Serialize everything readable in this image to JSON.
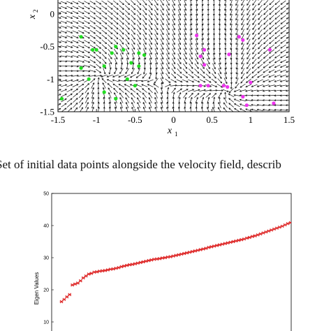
{
  "caption": "Set of initial data points alongside the velocity field, describ",
  "chart_data": [
    {
      "type": "scatter",
      "title": "",
      "xlabel": "x",
      "xlabel_sub": "1",
      "ylabel": "x",
      "ylabel_sub": "2",
      "xlim": [
        -1.5,
        1.5
      ],
      "ylim": [
        -1.5,
        0.25
      ],
      "xticks": [
        "-1.5",
        "-1",
        "-0.5",
        "0",
        "0.5",
        "1",
        "1.5"
      ],
      "xtick_values": [
        -1.5,
        -1,
        -0.5,
        0,
        0.5,
        1,
        1.5
      ],
      "yticks": [
        "0",
        "-0.5",
        "-1",
        "-1.5"
      ],
      "ytick_values": [
        0,
        -0.5,
        -1,
        -1.5
      ],
      "background": "velocity-field-arrows",
      "field_color": "#111111",
      "series": [
        {
          "color": "#22dd22",
          "points": [
            [
              -1.2,
              -0.35
            ],
            [
              -0.8,
              -0.6
            ],
            [
              -1.05,
              -0.55
            ],
            [
              -1.2,
              -0.83
            ],
            [
              -0.9,
              -1.2
            ],
            [
              -0.55,
              -0.75
            ],
            [
              -0.45,
              -0.8
            ],
            [
              -0.75,
              -0.5
            ],
            [
              -0.65,
              -0.55
            ],
            [
              -0.45,
              -0.6
            ],
            [
              -0.6,
              -1.0
            ],
            [
              -1.0,
              -0.55
            ],
            [
              -0.75,
              -1.3
            ],
            [
              -0.5,
              -1.1
            ],
            [
              -1.45,
              -1.3
            ],
            [
              -1.1,
              -1.0
            ],
            [
              -0.38,
              -0.63
            ],
            [
              -0.9,
              -0.8
            ]
          ]
        },
        {
          "color": "#ee33ee",
          "points": [
            [
              0.3,
              -0.33
            ],
            [
              0.72,
              -0.62
            ],
            [
              0.35,
              -0.65
            ],
            [
              0.4,
              -0.78
            ],
            [
              0.9,
              -0.4
            ],
            [
              1.25,
              -0.55
            ],
            [
              1.0,
              -1.05
            ],
            [
              0.7,
              -1.12
            ],
            [
              0.35,
              -1.1
            ],
            [
              0.45,
              -1.1
            ],
            [
              0.9,
              -1.27
            ],
            [
              0.95,
              -1.4
            ],
            [
              1.3,
              -1.37
            ],
            [
              0.65,
              -1.1
            ],
            [
              0.85,
              -0.35
            ],
            [
              0.4,
              -0.55
            ]
          ]
        }
      ]
    },
    {
      "type": "scatter",
      "title": "",
      "xlabel": "",
      "ylabel": "Eigen Values",
      "xlim": [
        0,
        100
      ],
      "ylim": [
        10,
        50
      ],
      "yticks": [
        "10",
        "20",
        "30",
        "40",
        "50"
      ],
      "ytick_values": [
        10,
        20,
        30,
        40,
        50
      ],
      "marker_color": "#dd2222",
      "y": [
        16.3,
        17.0,
        17.8,
        18.5,
        21.5,
        21.8,
        22.1,
        22.8,
        23.7,
        24.3,
        24.9,
        25.1,
        25.5,
        25.6,
        25.8,
        25.9,
        26.0,
        26.2,
        26.4,
        26.5,
        26.7,
        26.9,
        27.2,
        27.4,
        27.6,
        27.8,
        27.9,
        28.1,
        28.3,
        28.5,
        28.7,
        28.9,
        29.1,
        29.3,
        29.5,
        29.6,
        29.7,
        29.9,
        30.0,
        30.2,
        30.3,
        30.5,
        30.7,
        30.9,
        31.1,
        31.3,
        31.5,
        31.7,
        31.9,
        32.1,
        32.3,
        32.5,
        32.7,
        32.9,
        33.2,
        33.4,
        33.6,
        33.8,
        34.0,
        34.2,
        34.4,
        34.6,
        34.8,
        35.0,
        35.2,
        35.4,
        35.6,
        35.8,
        36.1,
        36.3,
        36.6,
        36.8,
        37.1,
        37.4,
        37.7,
        38.0,
        38.3,
        38.6,
        38.9,
        39.2,
        39.5,
        39.8,
        40.2,
        40.6,
        40.9
      ]
    }
  ]
}
